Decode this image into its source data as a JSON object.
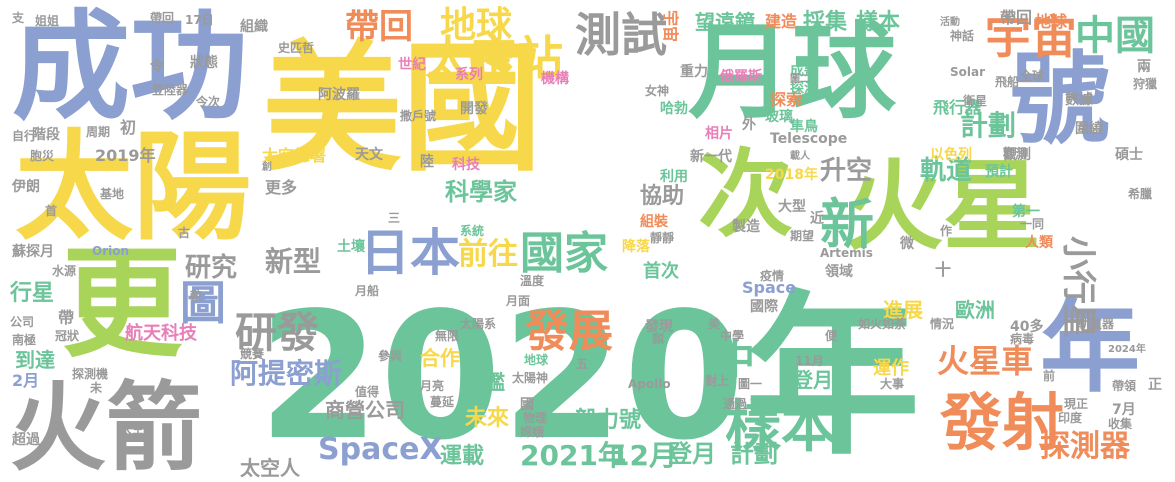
{
  "palette": {
    "yellow": "#f7d84a",
    "green": "#6cc49a",
    "lime": "#a9d45a",
    "blue": "#8b9fd0",
    "gray": "#9a9a9a",
    "orange": "#f08c5a",
    "pink": "#e87fb8"
  },
  "words": [
    {
      "text": "2020年",
      "color": "green"
    },
    {
      "text": "美國",
      "color": "yellow"
    },
    {
      "text": "成功",
      "color": "blue"
    },
    {
      "text": "太陽",
      "color": "yellow"
    },
    {
      "text": "月球",
      "color": "green"
    },
    {
      "text": "號",
      "color": "blue"
    },
    {
      "text": "火星",
      "color": "lime"
    },
    {
      "text": "次",
      "color": "lime"
    },
    {
      "text": "更",
      "color": "lime"
    },
    {
      "text": "火箭",
      "color": "gray"
    },
    {
      "text": "年",
      "color": "blue"
    },
    {
      "text": "新",
      "color": "green"
    },
    {
      "text": "宇宙",
      "color": "orange"
    },
    {
      "text": "中國",
      "color": "green"
    },
    {
      "text": "太空站",
      "color": "yellow"
    },
    {
      "text": "測試",
      "color": "gray"
    },
    {
      "text": "地球",
      "color": "yellow"
    },
    {
      "text": "帶回",
      "color": "orange"
    },
    {
      "text": "日本",
      "color": "blue"
    },
    {
      "text": "國家",
      "color": "green"
    },
    {
      "text": "樣本",
      "color": "green"
    },
    {
      "text": "發射",
      "color": "orange"
    },
    {
      "text": "發展",
      "color": "orange"
    },
    {
      "text": "圖",
      "color": "blue"
    },
    {
      "text": "研發",
      "color": "gray"
    },
    {
      "text": "中",
      "color": "green"
    },
    {
      "text": "火星車",
      "color": "orange"
    },
    {
      "text": "小行星",
      "color": "gray"
    },
    {
      "text": "SpaceX",
      "color": "blue"
    },
    {
      "text": "2021年",
      "color": "green"
    },
    {
      "text": "12月",
      "color": "green"
    },
    {
      "text": "登月",
      "color": "green"
    },
    {
      "text": "計劃",
      "color": "green"
    },
    {
      "text": "探測器",
      "color": "orange"
    },
    {
      "text": "前往",
      "color": "yellow"
    },
    {
      "text": "新型",
      "color": "gray"
    },
    {
      "text": "研究",
      "color": "gray"
    },
    {
      "text": "阿提密斯",
      "color": "blue"
    },
    {
      "text": "計劃",
      "color": "green"
    },
    {
      "text": "升空",
      "color": "gray"
    },
    {
      "text": "軌道",
      "color": "green"
    },
    {
      "text": "科學家",
      "color": "green"
    },
    {
      "text": "協助",
      "color": "gray"
    },
    {
      "text": "採集",
      "color": "green"
    },
    {
      "text": "樣本",
      "color": "green"
    },
    {
      "text": "望遠鏡",
      "color": "green"
    },
    {
      "text": "宇宙",
      "color": "orange"
    },
    {
      "text": "建造",
      "color": "orange"
    },
    {
      "text": "帶回",
      "color": "gray"
    },
    {
      "text": "地球",
      "color": "orange"
    },
    {
      "text": "太空人",
      "color": "gray"
    },
    {
      "text": "運載",
      "color": "green"
    },
    {
      "text": "毅力號",
      "color": "green"
    },
    {
      "text": "未來",
      "color": "yellow"
    },
    {
      "text": "合作",
      "color": "yellow"
    },
    {
      "text": "星艦",
      "color": "green"
    },
    {
      "text": "商營公司",
      "color": "gray"
    },
    {
      "text": "運作",
      "color": "yellow"
    },
    {
      "text": "登月",
      "color": "green"
    },
    {
      "text": "首次",
      "color": "green"
    },
    {
      "text": "進展",
      "color": "yellow"
    },
    {
      "text": "歐洲",
      "color": "green"
    },
    {
      "text": "行星",
      "color": "green"
    },
    {
      "text": "到達",
      "color": "green"
    },
    {
      "text": "航天科技",
      "color": "pink"
    },
    {
      "text": "2019年",
      "color": "gray"
    },
    {
      "text": "太空總署",
      "color": "yellow"
    },
    {
      "text": "更多",
      "color": "gray"
    },
    {
      "text": "天文",
      "color": "gray"
    },
    {
      "text": "科技",
      "color": "pink"
    },
    {
      "text": "2018年",
      "color": "yellow"
    },
    {
      "text": "預計",
      "color": "green"
    },
    {
      "text": "以色列",
      "color": "yellow"
    },
    {
      "text": "觀測",
      "color": "gray"
    },
    {
      "text": "新一代",
      "color": "gray"
    },
    {
      "text": "利用",
      "color": "green"
    },
    {
      "text": "Telescope",
      "color": "gray"
    },
    {
      "text": "飛行器",
      "color": "green"
    },
    {
      "text": "數據",
      "color": "gray"
    },
    {
      "text": "探索",
      "color": "orange"
    },
    {
      "text": "玻璃",
      "color": "green"
    },
    {
      "text": "探測",
      "color": "green"
    },
    {
      "text": "成熟",
      "color": "green"
    },
    {
      "text": "重力",
      "color": "gray"
    },
    {
      "text": "世紀",
      "color": "pink"
    },
    {
      "text": "系列",
      "color": "pink"
    },
    {
      "text": "開發",
      "color": "gray"
    },
    {
      "text": "阿波羅",
      "color": "gray"
    },
    {
      "text": "機構",
      "color": "pink"
    },
    {
      "text": "俄羅斯",
      "color": "pink"
    },
    {
      "text": "哈勃",
      "color": "green"
    },
    {
      "text": "相片",
      "color": "pink"
    },
    {
      "text": "隼鳥",
      "color": "green"
    },
    {
      "text": "圍繞",
      "color": "gray"
    },
    {
      "text": "碩士",
      "color": "gray"
    },
    {
      "text": "人類",
      "color": "orange"
    },
    {
      "text": "第一",
      "color": "green"
    },
    {
      "text": "大型",
      "color": "gray"
    },
    {
      "text": "組裝",
      "color": "orange"
    },
    {
      "text": "降落",
      "color": "yellow"
    },
    {
      "text": "製造",
      "color": "gray"
    },
    {
      "text": "Space",
      "color": "blue"
    },
    {
      "text": "國際",
      "color": "gray"
    },
    {
      "text": "領域",
      "color": "gray"
    },
    {
      "text": "月面",
      "color": "gray"
    },
    {
      "text": "發現",
      "color": "gray"
    },
    {
      "text": "太陽系",
      "color": "gray"
    },
    {
      "text": "中學",
      "color": "gray"
    },
    {
      "text": "科學",
      "color": "green"
    },
    {
      "text": "地球",
      "color": "green"
    },
    {
      "text": "物理",
      "color": "gray"
    },
    {
      "text": "Apollo",
      "color": "gray"
    },
    {
      "text": "Artemis",
      "color": "gray"
    },
    {
      "text": "Solar",
      "color": "gray"
    },
    {
      "text": "Orion",
      "color": "blue"
    },
    {
      "text": "伊朗",
      "color": "gray"
    },
    {
      "text": "公司",
      "color": "gray"
    },
    {
      "text": "南極",
      "color": "gray"
    },
    {
      "text": "超過",
      "color": "gray"
    },
    {
      "text": "太空",
      "color": "gray"
    },
    {
      "text": "初",
      "color": "gray"
    },
    {
      "text": "周期",
      "color": "gray"
    },
    {
      "text": "基地",
      "color": "gray"
    },
    {
      "text": "水源",
      "color": "gray"
    },
    {
      "text": "土壤",
      "color": "green"
    },
    {
      "text": "系統",
      "color": "green"
    },
    {
      "text": "如火如荼",
      "color": "gray"
    },
    {
      "text": "病毒",
      "color": "gray"
    },
    {
      "text": "收集",
      "color": "gray"
    },
    {
      "text": "印度",
      "color": "gray"
    },
    {
      "text": "現正",
      "color": "gray"
    },
    {
      "text": "7月",
      "color": "gray"
    },
    {
      "text": "2月",
      "color": "blue"
    },
    {
      "text": "11月",
      "color": "gray"
    },
    {
      "text": "圖一",
      "color": "gray"
    },
    {
      "text": "通過",
      "color": "gray"
    },
    {
      "text": "對上",
      "color": "gray"
    },
    {
      "text": "月亮",
      "color": "gray"
    },
    {
      "text": "蔓延",
      "color": "gray"
    },
    {
      "text": "嫦娥",
      "color": "gray"
    },
    {
      "text": "帶",
      "color": "gray"
    },
    {
      "text": "狀態",
      "color": "gray"
    },
    {
      "text": "組織",
      "color": "gray"
    },
    {
      "text": "17日",
      "color": "gray"
    },
    {
      "text": "史匹哲",
      "color": "gray"
    },
    {
      "text": "令",
      "color": "gray"
    },
    {
      "text": "登陸器",
      "color": "gray"
    },
    {
      "text": "今次",
      "color": "gray"
    },
    {
      "text": "階段",
      "color": "gray"
    },
    {
      "text": "自行",
      "color": "gray"
    },
    {
      "text": "兩",
      "color": "gray"
    },
    {
      "text": "狩獵",
      "color": "gray"
    },
    {
      "text": "神話",
      "color": "gray"
    },
    {
      "text": "飛船",
      "color": "gray"
    },
    {
      "text": "全球",
      "color": "gray"
    },
    {
      "text": "活動",
      "color": "gray"
    },
    {
      "text": "衛星",
      "color": "gray"
    },
    {
      "text": "希臘",
      "color": "gray"
    },
    {
      "text": "疫情",
      "color": "gray"
    },
    {
      "text": "大事",
      "color": "gray"
    },
    {
      "text": "情況",
      "color": "gray"
    },
    {
      "text": "2024年",
      "color": "gray"
    },
    {
      "text": "便",
      "color": "gray"
    },
    {
      "text": "太陽神",
      "color": "gray"
    },
    {
      "text": "值得",
      "color": "gray"
    },
    {
      "text": "參與",
      "color": "gray"
    },
    {
      "text": "競賽",
      "color": "gray"
    },
    {
      "text": "冠狀",
      "color": "gray"
    },
    {
      "text": "探測機",
      "color": "gray"
    },
    {
      "text": "未",
      "color": "gray"
    },
    {
      "text": "蘇探月",
      "color": "gray"
    },
    {
      "text": "五",
      "color": "gray"
    },
    {
      "text": "無限",
      "color": "gray"
    },
    {
      "text": "靜靜",
      "color": "gray"
    },
    {
      "text": "期望",
      "color": "gray"
    },
    {
      "text": "近",
      "color": "gray"
    },
    {
      "text": "外",
      "color": "gray"
    },
    {
      "text": "作",
      "color": "gray"
    },
    {
      "text": "微",
      "color": "gray"
    },
    {
      "text": "十",
      "color": "gray"
    },
    {
      "text": "正",
      "color": "gray"
    },
    {
      "text": "前",
      "color": "gray"
    },
    {
      "text": "帶領",
      "color": "gray"
    },
    {
      "text": "軌道器",
      "color": "gray"
    },
    {
      "text": "40多",
      "color": "gray"
    },
    {
      "text": "顆",
      "color": "gray"
    },
    {
      "text": "美",
      "color": "gray"
    },
    {
      "text": "國",
      "color": "gray"
    },
    {
      "text": "首",
      "color": "gray"
    },
    {
      "text": "古",
      "color": "gray"
    },
    {
      "text": "三",
      "color": "gray"
    },
    {
      "text": "陸",
      "color": "gray"
    },
    {
      "text": "女神",
      "color": "gray"
    },
    {
      "text": "溫度",
      "color": "gray"
    },
    {
      "text": "支",
      "color": "gray"
    },
    {
      "text": "姐姐",
      "color": "gray"
    },
    {
      "text": "帶回",
      "color": "gray"
    },
    {
      "text": "撒戶號",
      "color": "gray"
    },
    {
      "text": "載人",
      "color": "gray"
    },
    {
      "text": "圖二",
      "color": "gray"
    },
    {
      "text": "創",
      "color": "gray"
    },
    {
      "text": "胞災",
      "color": "gray"
    },
    {
      "text": "較",
      "color": "gray"
    },
    {
      "text": "觀測",
      "color": "gray"
    },
    {
      "text": "一同",
      "color": "gray"
    },
    {
      "text": "月船",
      "color": "gray"
    }
  ]
}
